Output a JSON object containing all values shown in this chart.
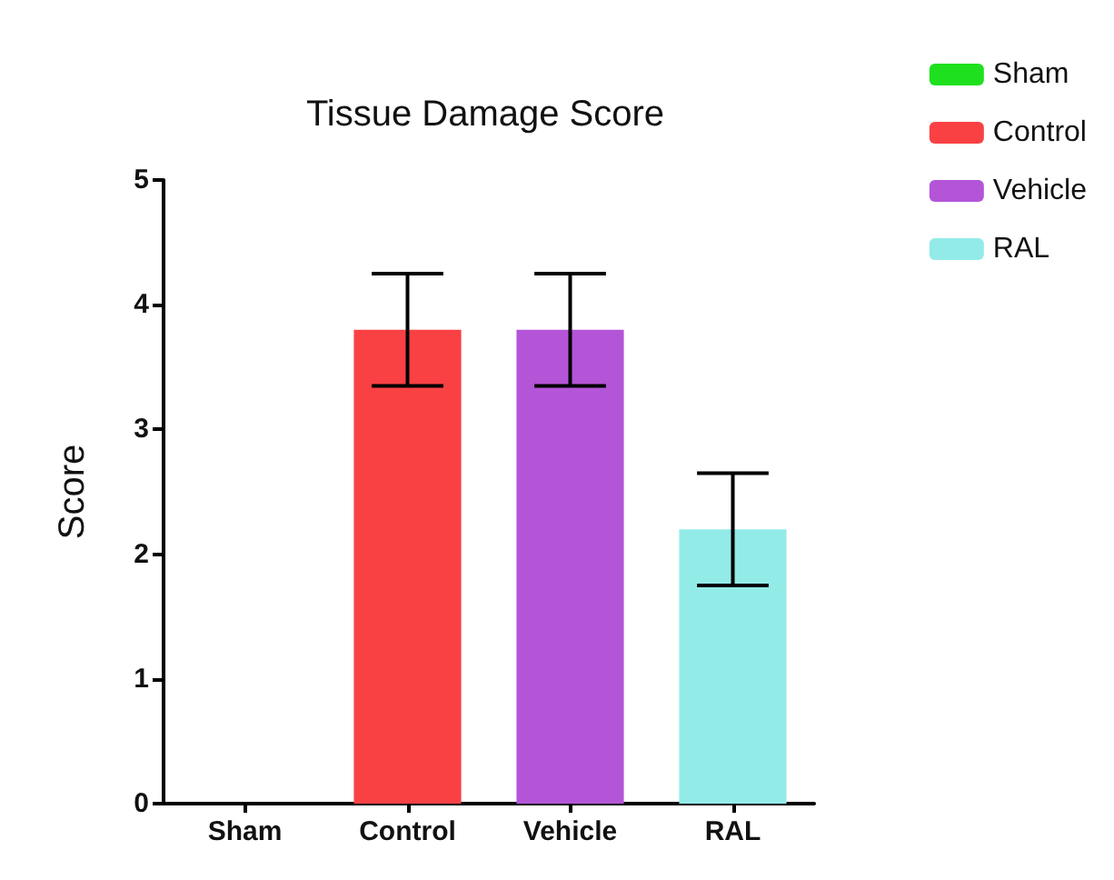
{
  "chart_data": {
    "type": "bar",
    "title": "Tissue Damage Score",
    "ylabel": "Score",
    "categories": [
      "Sham",
      "Control",
      "Vehicle",
      "RAL"
    ],
    "series": [
      {
        "name": "Sham",
        "color": "#1ee01e",
        "values": [
          0,
          null,
          null,
          null
        ],
        "errors": [
          null,
          null,
          null,
          null
        ]
      },
      {
        "name": "Control",
        "color": "#f94144",
        "values": [
          null,
          3.8,
          null,
          null
        ],
        "errors": [
          null,
          0.45,
          null,
          null
        ]
      },
      {
        "name": "Vehicle",
        "color": "#b455d8",
        "values": [
          null,
          null,
          3.8,
          null
        ],
        "errors": [
          null,
          null,
          0.45,
          null
        ]
      },
      {
        "name": "RAL",
        "color": "#93ebe8",
        "values": [
          null,
          null,
          null,
          2.2
        ],
        "errors": [
          null,
          null,
          null,
          0.45
        ]
      }
    ],
    "stacked": true,
    "ylim": [
      0,
      5
    ],
    "yticks": [
      0,
      1,
      2,
      3,
      4,
      5
    ],
    "grid": false,
    "legend": "top right"
  }
}
